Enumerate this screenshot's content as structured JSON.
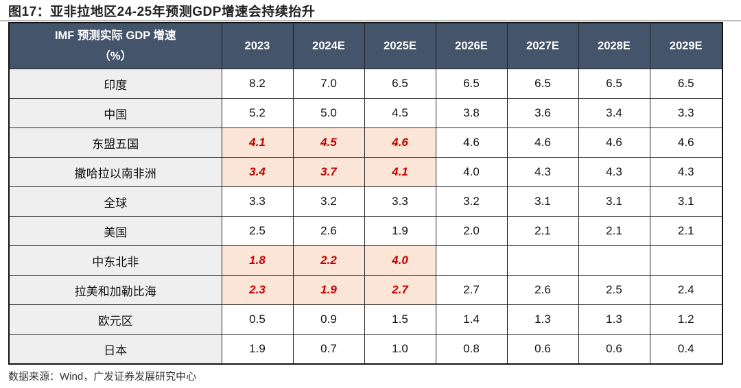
{
  "title": "图17：亚非拉地区24-25年预测GDP增速会持续抬升",
  "table": {
    "header_label_line1": "IMF 预测实际 GDP 增速",
    "header_label_line2": "（%）",
    "columns": [
      "2023",
      "2024E",
      "2025E",
      "2026E",
      "2027E",
      "2028E",
      "2029E"
    ],
    "rows": [
      {
        "label": "印度",
        "values": [
          "8.2",
          "7.0",
          "6.5",
          "6.5",
          "6.5",
          "6.5",
          "6.5"
        ],
        "highlight": false
      },
      {
        "label": "中国",
        "values": [
          "5.2",
          "5.0",
          "4.5",
          "3.8",
          "3.6",
          "3.4",
          "3.3"
        ],
        "highlight": false
      },
      {
        "label": "东盟五国",
        "values": [
          "4.1",
          "4.5",
          "4.6",
          "4.6",
          "4.6",
          "4.6",
          "4.6"
        ],
        "highlight": true
      },
      {
        "label": "撒哈拉以南非洲",
        "values": [
          "3.4",
          "3.7",
          "4.1",
          "4.0",
          "4.3",
          "4.3",
          "4.3"
        ],
        "highlight": true
      },
      {
        "label": "全球",
        "values": [
          "3.3",
          "3.2",
          "3.3",
          "3.2",
          "3.1",
          "3.1",
          "3.1"
        ],
        "highlight": false
      },
      {
        "label": "美国",
        "values": [
          "2.5",
          "2.6",
          "1.9",
          "2.0",
          "2.1",
          "2.1",
          "2.1"
        ],
        "highlight": false
      },
      {
        "label": "中东北非",
        "values": [
          "1.8",
          "2.2",
          "4.0",
          "",
          "",
          "",
          ""
        ],
        "highlight": true
      },
      {
        "label": "拉美和加勒比海",
        "values": [
          "2.3",
          "1.9",
          "2.7",
          "2.7",
          "2.6",
          "2.5",
          "2.4"
        ],
        "highlight": true
      },
      {
        "label": "欧元区",
        "values": [
          "0.5",
          "0.9",
          "1.5",
          "1.4",
          "1.3",
          "1.3",
          "1.2"
        ],
        "highlight": false
      },
      {
        "label": "日本",
        "values": [
          "1.9",
          "0.7",
          "1.0",
          "0.8",
          "0.6",
          "0.6",
          "0.4"
        ],
        "highlight": false
      }
    ],
    "colors": {
      "header_bg": "#44546a",
      "label_bg": "#efefef",
      "highlight_bg": "#fbe5d6",
      "highlight_text": "#c00000"
    }
  },
  "source": "数据来源：Wind，广发证券发展研究中心"
}
